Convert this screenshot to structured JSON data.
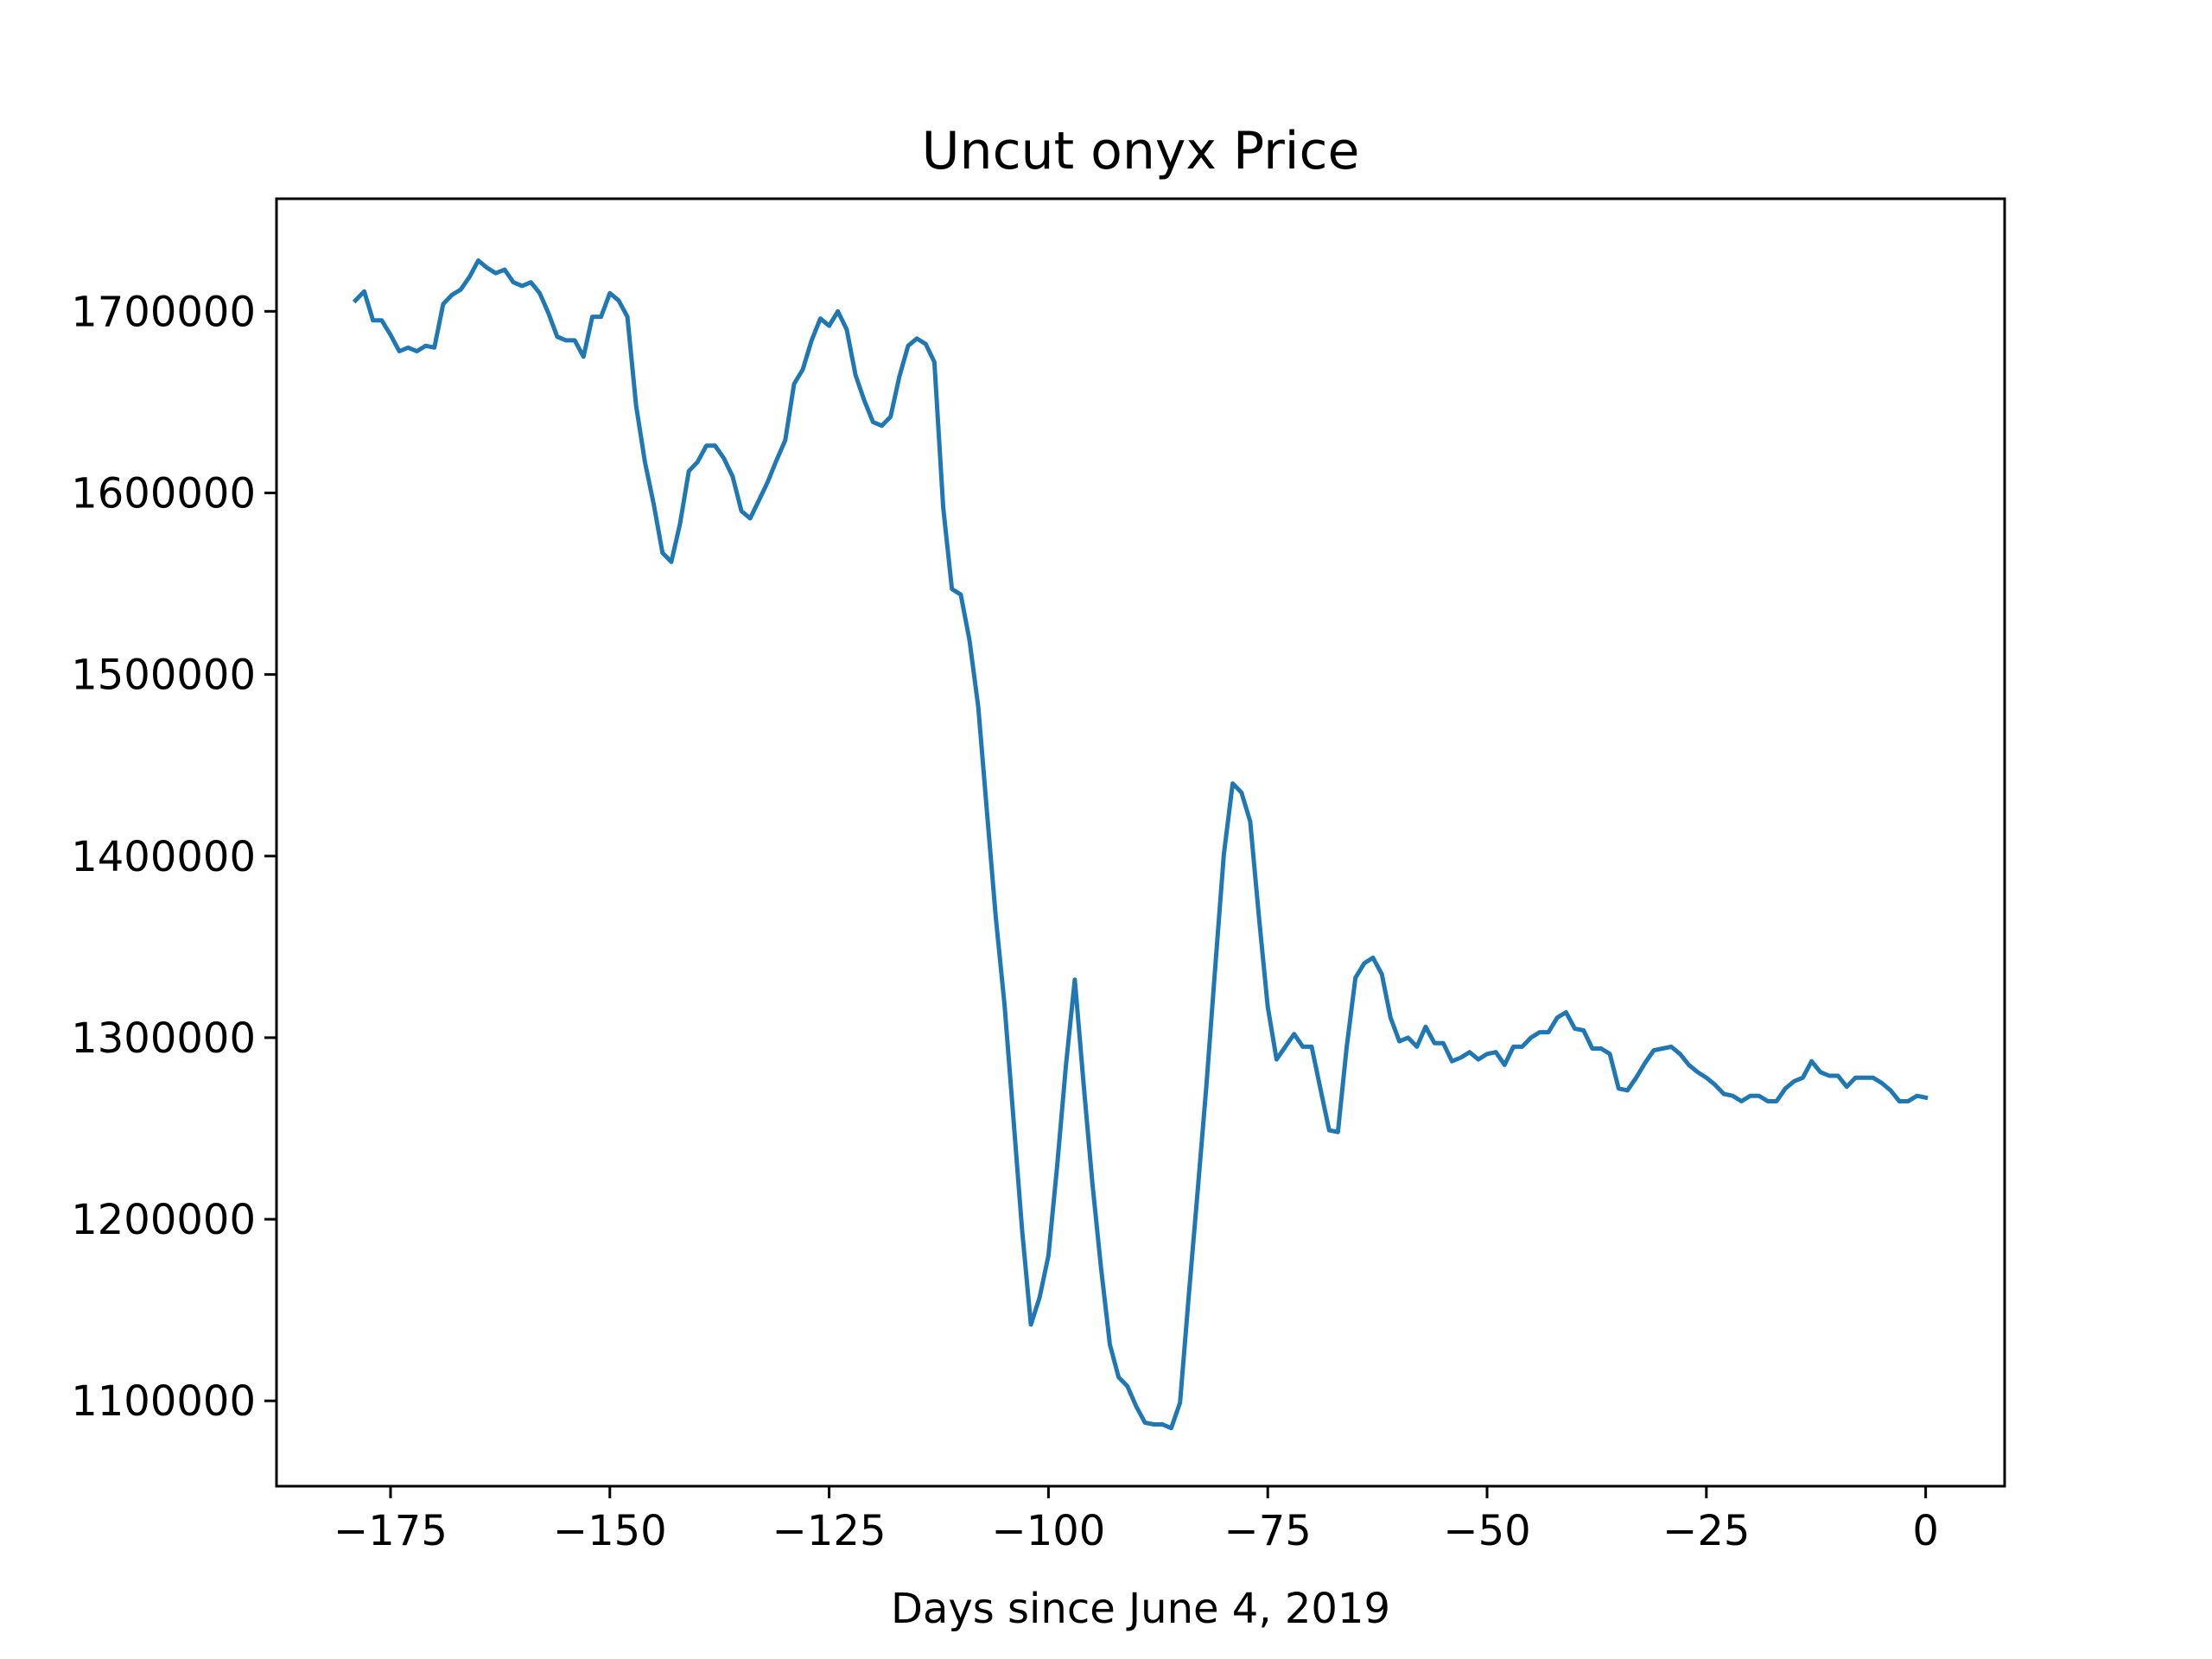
{
  "chart_data": {
    "type": "line",
    "title": "Uncut onyx Price",
    "xlabel": "Days since June 4, 2019",
    "ylabel": "",
    "xlim": [
      -188,
      9
    ],
    "ylim": [
      1053000,
      1762000
    ],
    "x_ticks": [
      -175,
      -150,
      -125,
      -100,
      -75,
      -50,
      -25,
      0
    ],
    "x_tick_labels": [
      "−175",
      "−150",
      "−125",
      "−100",
      "−75",
      "−50",
      "−25",
      "0"
    ],
    "y_ticks": [
      1100000,
      1200000,
      1300000,
      1400000,
      1500000,
      1600000,
      1700000
    ],
    "y_tick_labels": [
      "1100000",
      "1200000",
      "1300000",
      "1400000",
      "1500000",
      "1600000",
      "1700000"
    ],
    "grid": false,
    "colors": {
      "line": "#1f77b4",
      "axes": "#000000",
      "background": "#ffffff"
    },
    "series": [
      {
        "name": "",
        "x": [
          -179,
          -178,
          -177,
          -176,
          -175,
          -174,
          -173,
          -172,
          -171,
          -170,
          -169,
          -168,
          -167,
          -166,
          -165,
          -164,
          -163,
          -162,
          -161,
          -160,
          -159,
          -158,
          -157,
          -156,
          -155,
          -154,
          -153,
          -152,
          -151,
          -150,
          -149,
          -148,
          -147,
          -146,
          -145,
          -144,
          -143,
          -142,
          -141,
          -140,
          -139,
          -138,
          -137,
          -136,
          -135,
          -134,
          -133,
          -132,
          -131,
          -130,
          -129,
          -128,
          -127,
          -126,
          -125,
          -124,
          -123,
          -122,
          -121,
          -120,
          -119,
          -118,
          -117,
          -116,
          -115,
          -114,
          -113,
          -112,
          -111,
          -110,
          -109,
          -108,
          -107,
          -106,
          -105,
          -104,
          -103,
          -102,
          -101,
          -100,
          -99,
          -98,
          -97,
          -96,
          -95,
          -94,
          -93,
          -92,
          -91,
          -90,
          -89,
          -88,
          -87,
          -86,
          -85,
          -84,
          -83,
          -82,
          -81,
          -80,
          -79,
          -78,
          -77,
          -76,
          -75,
          -74,
          -73,
          -72,
          -71,
          -70,
          -69,
          -68,
          -67,
          -66,
          -65,
          -64,
          -63,
          -62,
          -61,
          -60,
          -59,
          -58,
          -57,
          -56,
          -55,
          -54,
          -53,
          -52,
          -51,
          -50,
          -49,
          -48,
          -47,
          -46,
          -45,
          -44,
          -43,
          -42,
          -41,
          -40,
          -39,
          -38,
          -37,
          -36,
          -35,
          -34,
          -33,
          -32,
          -31,
          -30,
          -29,
          -28,
          -27,
          -26,
          -25,
          -24,
          -23,
          -22,
          -21,
          -20,
          -19,
          -18,
          -17,
          -16,
          -15,
          -14,
          -13,
          -12,
          -11,
          -10,
          -9,
          -8,
          -7,
          -6,
          -5,
          -4,
          -3,
          -2,
          -1,
          0
        ],
        "values": [
          1706000,
          1711000,
          1695000,
          1695000,
          1687000,
          1678000,
          1680000,
          1678000,
          1681000,
          1680000,
          1704000,
          1709000,
          1712000,
          1719000,
          1728000,
          1724000,
          1721000,
          1723000,
          1716000,
          1714000,
          1716000,
          1710000,
          1699000,
          1686000,
          1684000,
          1684000,
          1675000,
          1697000,
          1697000,
          1710000,
          1706000,
          1697000,
          1648000,
          1617000,
          1594000,
          1567000,
          1562000,
          1583000,
          1612000,
          1617000,
          1626000,
          1626000,
          1619000,
          1609000,
          1590000,
          1586000,
          1596000,
          1606000,
          1618000,
          1629000,
          1660000,
          1668000,
          1684000,
          1696000,
          1692000,
          1700000,
          1690000,
          1665000,
          1651000,
          1639000,
          1637000,
          1642000,
          1664000,
          1681000,
          1685000,
          1682000,
          1672000,
          1592000,
          1547000,
          1544000,
          1519000,
          1482000,
          1424000,
          1366000,
          1318000,
          1256000,
          1194000,
          1142000,
          1157000,
          1180000,
          1230000,
          1285000,
          1332000,
          1275000,
          1220000,
          1173000,
          1131000,
          1113000,
          1108000,
          1097000,
          1088000,
          1087000,
          1087000,
          1085000,
          1099000,
          1158000,
          1215000,
          1273000,
          1338000,
          1401000,
          1440000,
          1435000,
          1419000,
          1366000,
          1317000,
          1288000,
          1295000,
          1302000,
          1295000,
          1295000,
          1272000,
          1249000,
          1248000,
          1295000,
          1333000,
          1341000,
          1344000,
          1335000,
          1311000,
          1298000,
          1300000,
          1295000,
          1306000,
          1297000,
          1297000,
          1287000,
          1289000,
          1292000,
          1288000,
          1291000,
          1292000,
          1285000,
          1295000,
          1295000,
          1300000,
          1303000,
          1303000,
          1311000,
          1314000,
          1305000,
          1304000,
          1294000,
          1294000,
          1291000,
          1272000,
          1271000,
          1278000,
          1286000,
          1293000,
          1294000,
          1295000,
          1291000,
          1285000,
          1281000,
          1278000,
          1274000,
          1269000,
          1268000,
          1265000,
          1268000,
          1268000,
          1265000,
          1265000,
          1272000,
          1276000,
          1278000,
          1287000,
          1281000,
          1279000,
          1279000,
          1273000,
          1278000,
          1278000,
          1278000,
          1275000,
          1271000,
          1265000,
          1265000,
          1268000,
          1267000
        ]
      }
    ]
  }
}
